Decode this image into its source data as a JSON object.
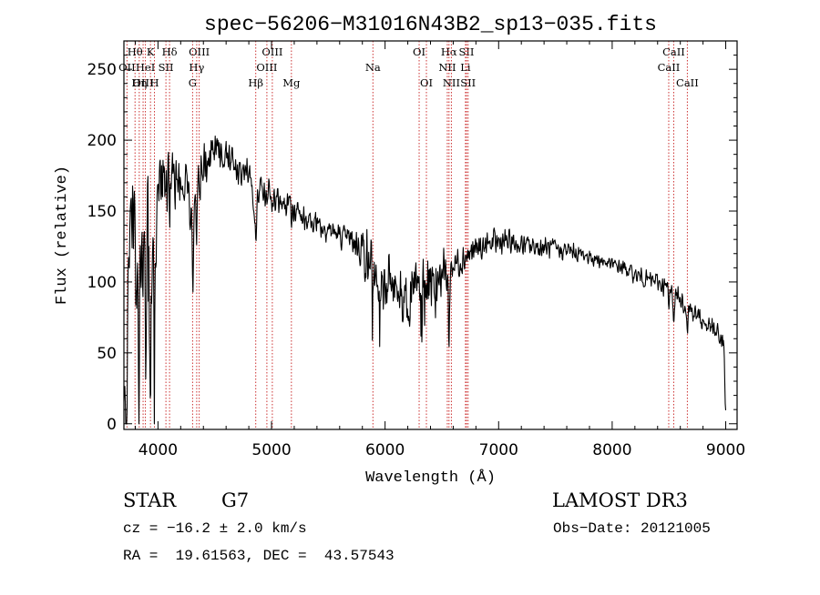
{
  "chart_data": {
    "type": "line",
    "title": "spec−56206−M31016N43B2_sp13−035.fits",
    "xlabel": "Wavelength (Å)",
    "ylabel": "Flux (relative)",
    "xlim": [
      3700,
      9100
    ],
    "ylim": [
      -4,
      270
    ],
    "x_ticks": [
      4000,
      5000,
      6000,
      7000,
      8000,
      9000
    ],
    "y_ticks": [
      0,
      50,
      100,
      150,
      200,
      250
    ],
    "grid": false,
    "line_color": "#000000",
    "marker_color": "#cc3333",
    "series": [
      {
        "name": "flux",
        "anchors": [
          [
            3700,
            0
          ],
          [
            3710,
            45
          ],
          [
            3740,
            130
          ],
          [
            3780,
            150
          ],
          [
            3800,
            120
          ],
          [
            3830,
            90
          ],
          [
            3850,
            130
          ],
          [
            3870,
            120
          ],
          [
            3900,
            140
          ],
          [
            3930,
            125
          ],
          [
            3950,
            120
          ],
          [
            3980,
            140
          ],
          [
            4000,
            165
          ],
          [
            4050,
            170
          ],
          [
            4100,
            172
          ],
          [
            4150,
            170
          ],
          [
            4200,
            172
          ],
          [
            4250,
            168
          ],
          [
            4300,
            150
          ],
          [
            4330,
            160
          ],
          [
            4400,
            180
          ],
          [
            4450,
            185
          ],
          [
            4500,
            190
          ],
          [
            4550,
            192
          ],
          [
            4600,
            188
          ],
          [
            4700,
            180
          ],
          [
            4800,
            176
          ],
          [
            4850,
            150
          ],
          [
            4900,
            168
          ],
          [
            5000,
            160
          ],
          [
            5100,
            155
          ],
          [
            5200,
            152
          ],
          [
            5300,
            145
          ],
          [
            5400,
            140
          ],
          [
            5500,
            138
          ],
          [
            5600,
            132
          ],
          [
            5700,
            130
          ],
          [
            5800,
            125
          ],
          [
            5850,
            115
          ],
          [
            5900,
            105
          ],
          [
            6000,
            100
          ],
          [
            6100,
            98
          ],
          [
            6200,
            92
          ],
          [
            6300,
            95
          ],
          [
            6400,
            100
          ],
          [
            6500,
            108
          ],
          [
            6550,
            105
          ],
          [
            6600,
            112
          ],
          [
            6700,
            118
          ],
          [
            6800,
            122
          ],
          [
            6900,
            126
          ],
          [
            7000,
            128
          ],
          [
            7100,
            128
          ],
          [
            7200,
            126
          ],
          [
            7300,
            125
          ],
          [
            7400,
            124
          ],
          [
            7500,
            123
          ],
          [
            7600,
            122
          ],
          [
            7700,
            120
          ],
          [
            7800,
            118
          ],
          [
            7900,
            115
          ],
          [
            8000,
            112
          ],
          [
            8100,
            110
          ],
          [
            8200,
            105
          ],
          [
            8300,
            102
          ],
          [
            8400,
            100
          ],
          [
            8500,
            95
          ],
          [
            8600,
            88
          ],
          [
            8700,
            80
          ],
          [
            8800,
            72
          ],
          [
            8900,
            65
          ],
          [
            8980,
            58
          ],
          [
            9000,
            10
          ]
        ],
        "noise": [
          [
            3700,
            60
          ],
          [
            3950,
            45
          ],
          [
            4050,
            30
          ],
          [
            4300,
            20
          ],
          [
            5000,
            12
          ],
          [
            5700,
            10
          ],
          [
            5850,
            25
          ],
          [
            6450,
            25
          ],
          [
            6600,
            14
          ],
          [
            7100,
            10
          ],
          [
            8000,
            6
          ],
          [
            8500,
            8
          ],
          [
            9000,
            10
          ]
        ],
        "dips": [
          [
            3723,
            -110
          ],
          [
            3831,
            -100
          ],
          [
            3891,
            -95
          ],
          [
            3934,
            -90
          ],
          [
            3969,
            -80
          ],
          [
            4101,
            -30
          ],
          [
            4307,
            -45
          ],
          [
            4340,
            -25
          ],
          [
            4861,
            -30
          ],
          [
            5175,
            -15
          ],
          [
            5893,
            -20
          ],
          [
            6160,
            -15
          ],
          [
            6563,
            -55
          ],
          [
            8498,
            -15
          ],
          [
            8542,
            -18
          ],
          [
            8662,
            -15
          ]
        ]
      }
    ],
    "line_markers": [
      {
        "label": "Hθ",
        "wavelength": 3798,
        "row": 0
      },
      {
        "label": "OII",
        "wavelength": 3727,
        "row": 1
      },
      {
        "label": "OIII",
        "wavelength": 3869,
        "row": 2
      },
      {
        "label": "K",
        "wavelength": 3934,
        "row": 0
      },
      {
        "label": "HeI",
        "wavelength": 3889,
        "row": 1
      },
      {
        "label": "Hη",
        "wavelength": 3835,
        "row": 2
      },
      {
        "label": "SII",
        "wavelength": 4070,
        "row": 1
      },
      {
        "label": "H",
        "wavelength": 3969,
        "row": 2
      },
      {
        "label": "Hδ",
        "wavelength": 4102,
        "row": 0
      },
      {
        "label": "OIII",
        "wavelength": 4363,
        "row": 0
      },
      {
        "label": "Hγ",
        "wavelength": 4341,
        "row": 1
      },
      {
        "label": "G",
        "wavelength": 4305,
        "row": 2
      },
      {
        "label": "Hβ",
        "wavelength": 4861,
        "row": 2
      },
      {
        "label": "OIII",
        "wavelength": 5007,
        "row": 0
      },
      {
        "label": "OIII",
        "wavelength": 4959,
        "row": 1
      },
      {
        "label": "Mg",
        "wavelength": 5175,
        "row": 2
      },
      {
        "label": "Na",
        "wavelength": 5893,
        "row": 1
      },
      {
        "label": "OI",
        "wavelength": 6300,
        "row": 0
      },
      {
        "label": "OI",
        "wavelength": 6364,
        "row": 2
      },
      {
        "label": "Hα",
        "wavelength": 6563,
        "row": 0
      },
      {
        "label": "NII",
        "wavelength": 6548,
        "row": 1
      },
      {
        "label": "NII",
        "wavelength": 6584,
        "row": 2
      },
      {
        "label": "SII",
        "wavelength": 6717,
        "row": 0
      },
      {
        "label": "Li",
        "wavelength": 6708,
        "row": 1
      },
      {
        "label": "SII",
        "wavelength": 6731,
        "row": 2
      },
      {
        "label": "CaII",
        "wavelength": 8542,
        "row": 0
      },
      {
        "label": "CaII",
        "wavelength": 8498,
        "row": 1
      },
      {
        "label": "CaII",
        "wavelength": 8662,
        "row": 2
      }
    ]
  },
  "info": {
    "object_class": "STAR",
    "subclass": "G7",
    "survey": "LAMOST DR3",
    "velocity": "cz = −16.2 ± 2.0 km/s",
    "obs_date": "Obs−Date: 20121005",
    "coordinates": "RA =  19.61563, DEC =  43.57543"
  }
}
